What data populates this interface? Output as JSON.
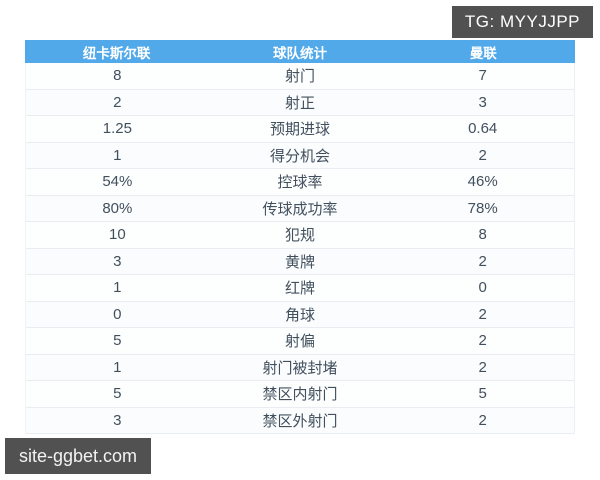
{
  "overlays": {
    "telegram_badge": "TG: MYYJJPP",
    "watermark": "site-ggbet.com"
  },
  "colors": {
    "header_bg": "#52a9ea",
    "header_text": "#ffffff",
    "cell_text": "#42505e",
    "row_border": "#e9edf1",
    "badge_bg": "#515151",
    "badge_text": "#ffffff",
    "page_bg": "#ffffff"
  },
  "table": {
    "header": {
      "home": "纽卡斯尔联",
      "stat": "球队统计",
      "away": "曼联"
    },
    "rows": [
      {
        "home": "8",
        "stat": "射门",
        "away": "7"
      },
      {
        "home": "2",
        "stat": "射正",
        "away": "3"
      },
      {
        "home": "1.25",
        "stat": "预期进球",
        "away": "0.64"
      },
      {
        "home": "1",
        "stat": "得分机会",
        "away": "2"
      },
      {
        "home": "54%",
        "stat": "控球率",
        "away": "46%"
      },
      {
        "home": "80%",
        "stat": "传球成功率",
        "away": "78%"
      },
      {
        "home": "10",
        "stat": "犯规",
        "away": "8"
      },
      {
        "home": "3",
        "stat": "黄牌",
        "away": "2"
      },
      {
        "home": "1",
        "stat": "红牌",
        "away": "0"
      },
      {
        "home": "0",
        "stat": "角球",
        "away": "2"
      },
      {
        "home": "5",
        "stat": "射偏",
        "away": "2"
      },
      {
        "home": "1",
        "stat": "射门被封堵",
        "away": "2"
      },
      {
        "home": "5",
        "stat": "禁区内射门",
        "away": "5"
      },
      {
        "home": "3",
        "stat": "禁区外射门",
        "away": "2"
      }
    ]
  },
  "chart_data": {
    "type": "table",
    "title": "球队统计",
    "columns": [
      "纽卡斯尔联",
      "球队统计",
      "曼联"
    ],
    "categories": [
      "射门",
      "射正",
      "预期进球",
      "得分机会",
      "控球率",
      "传球成功率",
      "犯规",
      "黄牌",
      "红牌",
      "角球",
      "射偏",
      "射门被封堵",
      "禁区内射门",
      "禁区外射门"
    ],
    "series": [
      {
        "name": "纽卡斯尔联",
        "values": [
          "8",
          "2",
          "1.25",
          "1",
          "54%",
          "80%",
          "10",
          "3",
          "1",
          "0",
          "5",
          "1",
          "5",
          "3"
        ]
      },
      {
        "name": "曼联",
        "values": [
          "7",
          "3",
          "0.64",
          "2",
          "46%",
          "78%",
          "8",
          "2",
          "0",
          "2",
          "2",
          "2",
          "5",
          "2"
        ]
      }
    ],
    "legend_position": "none",
    "grid": "row-separators-only"
  }
}
